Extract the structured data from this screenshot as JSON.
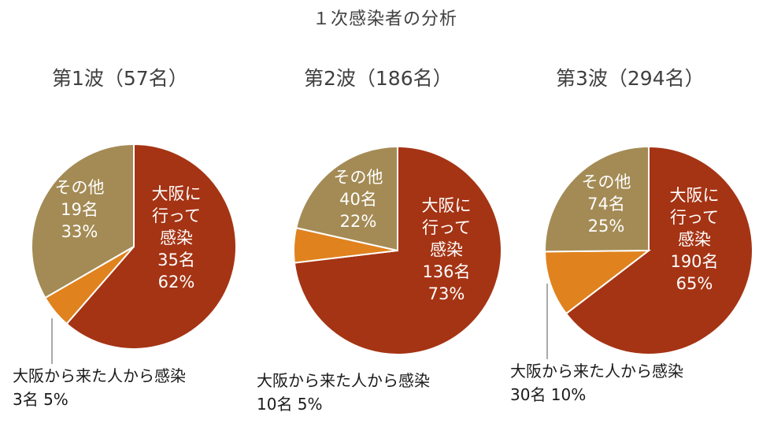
{
  "page_title": "１次感染者の分析",
  "colors": {
    "osaka_infected": "#A53414",
    "from_osaka_person": "#E0821E",
    "other": "#A48B55",
    "leader_line": "#8c8c8c"
  },
  "chart_data": [
    {
      "type": "pie",
      "title": "第1波（57名）",
      "slices": [
        {
          "category": "大阪に行って感染",
          "count": 35,
          "percent": 62,
          "lines": [
            "大阪に",
            "行って",
            "感染",
            "35名",
            "62%"
          ]
        },
        {
          "category": "大阪から来た人から感染",
          "count": 3,
          "percent": 5,
          "lines": [
            "大阪から来た人から感染",
            "3名 5%"
          ]
        },
        {
          "category": "その他",
          "count": 19,
          "percent": 33,
          "lines": [
            "その他",
            "19名",
            "33%"
          ]
        }
      ]
    },
    {
      "type": "pie",
      "title": "第2波（186名）",
      "slices": [
        {
          "category": "大阪に行って感染",
          "count": 136,
          "percent": 73,
          "lines": [
            "大阪に",
            "行って",
            "感染",
            "136名",
            "73%"
          ]
        },
        {
          "category": "大阪から来た人から感染",
          "count": 10,
          "percent": 5,
          "lines": [
            "大阪から来た人から感染",
            "10名 5%"
          ]
        },
        {
          "category": "その他",
          "count": 40,
          "percent": 22,
          "lines": [
            "その他",
            "40名",
            "22%"
          ]
        }
      ]
    },
    {
      "type": "pie",
      "title": "第3波（294名）",
      "slices": [
        {
          "category": "大阪に行って感染",
          "count": 190,
          "percent": 65,
          "lines": [
            "大阪に",
            "行って",
            "感染",
            "190名",
            "65%"
          ]
        },
        {
          "category": "大阪から来た人から感染",
          "count": 30,
          "percent": 10,
          "lines": [
            "大阪から来た人から感染",
            "30名 10%"
          ]
        },
        {
          "category": "その他",
          "count": 74,
          "percent": 25,
          "lines": [
            "その他",
            "74名",
            "25%"
          ]
        }
      ]
    }
  ]
}
